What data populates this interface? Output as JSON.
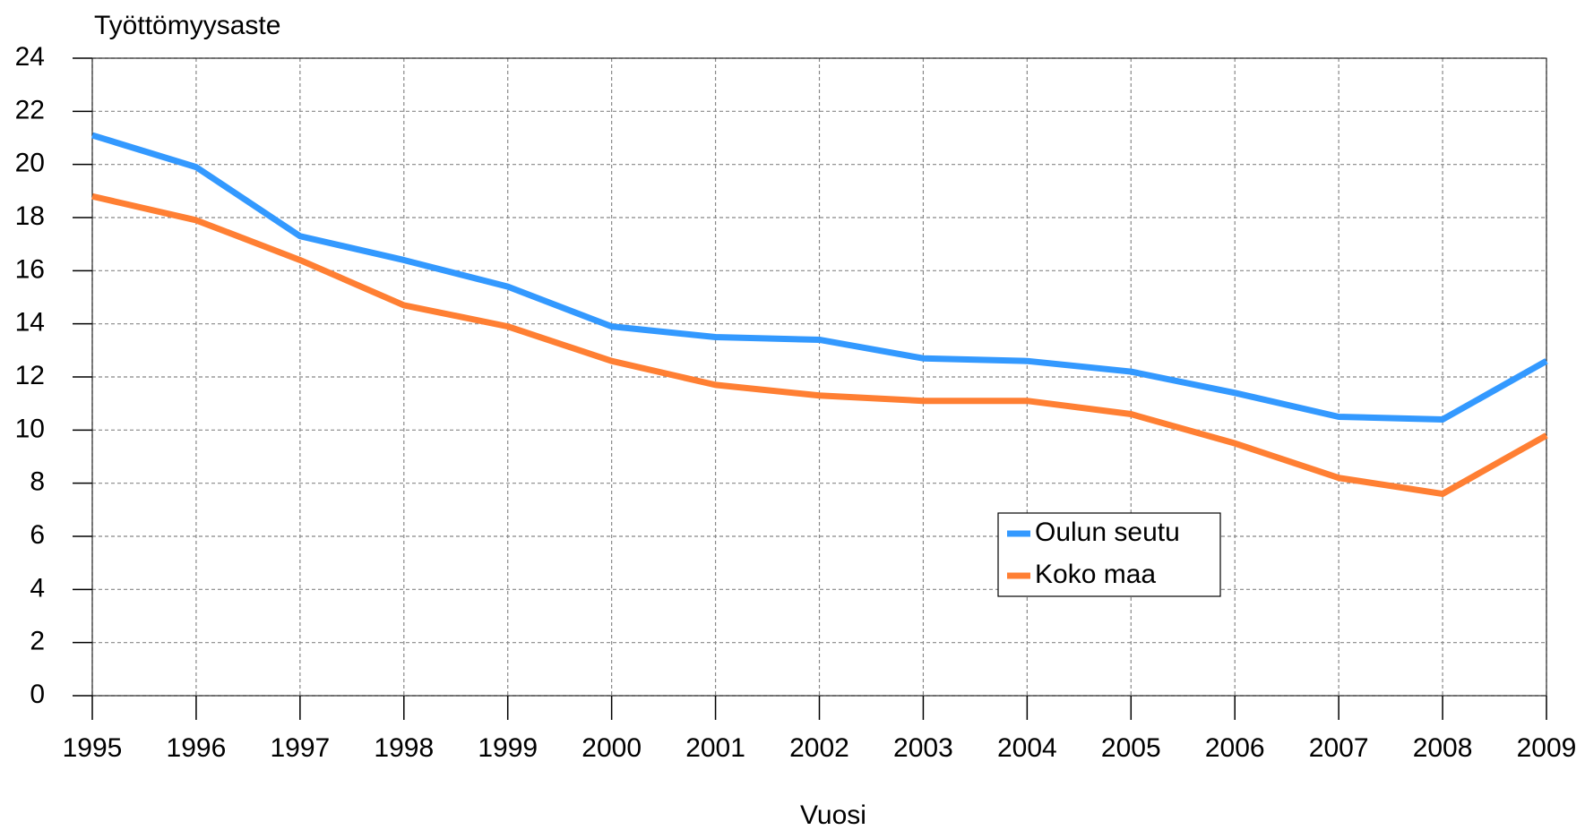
{
  "chart_data": {
    "type": "line",
    "y_label": "Työttömyysaste",
    "x_label": "Vuosi",
    "x": [
      1995,
      1996,
      1997,
      1998,
      1999,
      2000,
      2001,
      2002,
      2003,
      2004,
      2005,
      2006,
      2007,
      2008,
      2009
    ],
    "series": [
      {
        "name": "Oulun seutu",
        "color": "#3399ff",
        "values": [
          21.1,
          19.9,
          17.3,
          16.4,
          15.4,
          13.9,
          13.5,
          13.4,
          12.7,
          12.6,
          12.2,
          11.4,
          10.5,
          10.4,
          12.6
        ]
      },
      {
        "name": "Koko maa",
        "color": "#ff7f33",
        "values": [
          18.8,
          17.9,
          16.4,
          14.7,
          13.9,
          12.6,
          11.7,
          11.3,
          11.1,
          11.1,
          10.6,
          9.5,
          8.2,
          7.6,
          9.8
        ]
      }
    ],
    "xlim": [
      1995,
      2009
    ],
    "xticks": [
      1995,
      1996,
      1997,
      1998,
      1999,
      2000,
      2001,
      2002,
      2003,
      2004,
      2005,
      2006,
      2007,
      2008,
      2009
    ],
    "ylim": [
      0,
      24
    ],
    "yticks": [
      0,
      2,
      4,
      6,
      8,
      10,
      12,
      14,
      16,
      18,
      20,
      22,
      24
    ],
    "grid": true
  }
}
